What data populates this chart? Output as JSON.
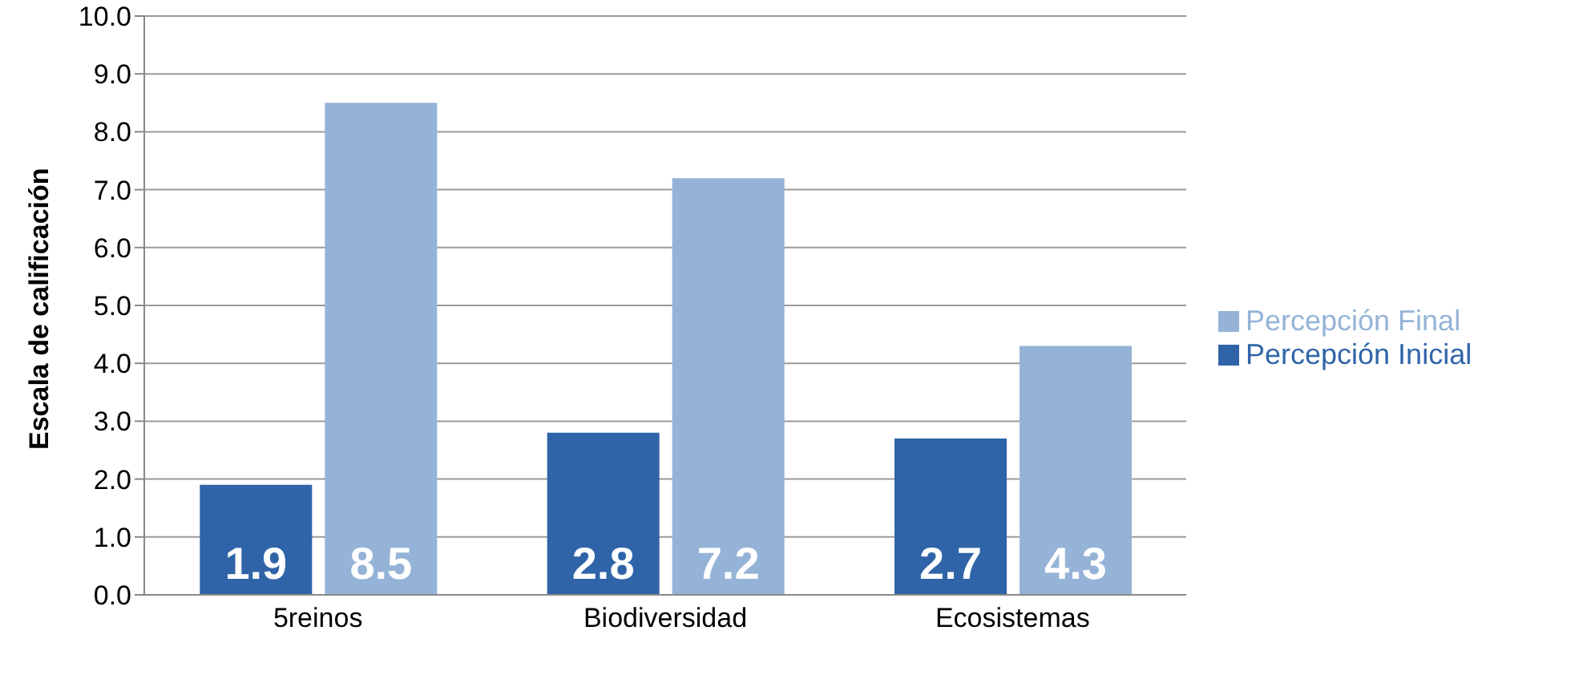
{
  "chart_data": {
    "type": "bar",
    "ylabel": "Escala de calificación",
    "categories": [
      "5reinos",
      "Biodiversidad",
      "Ecosistemas"
    ],
    "series": [
      {
        "name": "Percepción Inicial",
        "color": "#2f64a8",
        "values": [
          1.9,
          2.8,
          2.7
        ]
      },
      {
        "name": "Percepción Final",
        "color": "#95b3d7",
        "values": [
          8.5,
          7.2,
          4.3
        ]
      }
    ],
    "ylim": [
      0,
      10
    ],
    "yticks": [
      {
        "value": 0,
        "label": "0.0"
      },
      {
        "value": 1,
        "label": "1.0"
      },
      {
        "value": 2,
        "label": "2.0"
      },
      {
        "value": 3,
        "label": "3.0"
      },
      {
        "value": 4,
        "label": "4.0"
      },
      {
        "value": 5,
        "label": "5.0"
      },
      {
        "value": 6,
        "label": "6.0"
      },
      {
        "value": 7,
        "label": "7.0"
      },
      {
        "value": 8,
        "label": "8.0"
      },
      {
        "value": 9,
        "label": "9.0"
      },
      {
        "value": 10,
        "label": "10.0"
      }
    ],
    "grid": "y",
    "legend": "right",
    "data_labels": true
  }
}
